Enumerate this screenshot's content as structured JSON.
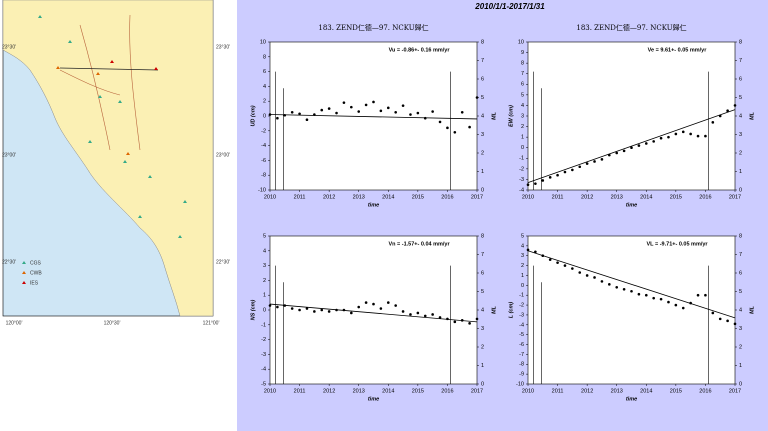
{
  "map": {
    "lon_labels": [
      "120°00'",
      "120°30'",
      "121°00'"
    ],
    "lat_labels": [
      "23°30'",
      "23°00'",
      "22°30'"
    ],
    "legend": [
      "CGS",
      "CWB",
      "IES"
    ]
  },
  "header": {
    "title": "2010/1/1-2017/1/31"
  },
  "chart_data": [
    {
      "type": "scatter",
      "title": "183. ZEND仁德—97. NCKU歸仁",
      "annotation": "Vu = -0.86+- 0.16 mm/yr",
      "x_label": "time",
      "y_label": "UD (cm)",
      "y2_label": "ML",
      "color": "#000000",
      "xlim": [
        2010,
        2017
      ],
      "xticks": [
        2010,
        2011,
        2012,
        2013,
        2014,
        2015,
        2016,
        2017
      ],
      "ylim": [
        -10,
        10
      ],
      "yticks": [
        -10,
        -8,
        -6,
        -4,
        -2,
        0,
        2,
        4,
        6,
        8,
        10
      ],
      "y2lim": [
        0,
        8
      ],
      "y2ticks": [
        0,
        1,
        2,
        3,
        4,
        5,
        6,
        7,
        8
      ],
      "x": [
        2010,
        2010.25,
        2010.5,
        2010.75,
        2011,
        2011.25,
        2011.5,
        2011.75,
        2012,
        2012.25,
        2012.5,
        2012.75,
        2013,
        2013.25,
        2013.5,
        2013.75,
        2014,
        2014.25,
        2014.5,
        2014.75,
        2015,
        2015.25,
        2015.5,
        2015.75,
        2016,
        2016.25,
        2016.5,
        2016.75,
        2017
      ],
      "values": [
        0.2,
        -0.3,
        0.1,
        0.5,
        0.3,
        -0.5,
        0.2,
        0.8,
        1.0,
        0.4,
        1.8,
        1.2,
        0.6,
        1.5,
        1.9,
        0.7,
        1.1,
        0.5,
        1.4,
        0.2,
        0.4,
        -0.3,
        0.6,
        -0.8,
        -1.6,
        -2.2,
        0.5,
        -1.5,
        2.5
      ],
      "trend": {
        "x": [
          2010,
          2017
        ],
        "values": [
          0.2,
          -0.4
        ]
      },
      "events": {
        "x": [
          2010.18,
          2010.45,
          2016.1
        ],
        "values": [
          6.4,
          5.5,
          6.4
        ]
      }
    },
    {
      "type": "scatter",
      "title": "183. ZEND仁德—97. NCKU歸仁",
      "annotation": "Ve = 9.61+- 0.05 mm/yr",
      "x_label": "time",
      "y_label": "EW (cm)",
      "y2_label": "ML",
      "color": "#000000",
      "xlim": [
        2010,
        2017
      ],
      "xticks": [
        2010,
        2011,
        2012,
        2013,
        2014,
        2015,
        2016,
        2017
      ],
      "ylim": [
        -4,
        10
      ],
      "yticks": [
        -4,
        -3,
        -2,
        -1,
        0,
        1,
        2,
        3,
        4,
        5,
        6,
        7,
        8,
        9,
        10
      ],
      "y2lim": [
        0,
        8
      ],
      "y2ticks": [
        0,
        1,
        2,
        3,
        4,
        5,
        6,
        7,
        8
      ],
      "x": [
        2010,
        2010.25,
        2010.5,
        2010.75,
        2011,
        2011.25,
        2011.5,
        2011.75,
        2012,
        2012.25,
        2012.5,
        2012.75,
        2013,
        2013.25,
        2013.5,
        2013.75,
        2014,
        2014.25,
        2014.5,
        2014.75,
        2015,
        2015.25,
        2015.5,
        2015.75,
        2016,
        2016.25,
        2016.5,
        2016.75,
        2017
      ],
      "values": [
        -3.5,
        -3.4,
        -3.1,
        -2.8,
        -2.6,
        -2.3,
        -2.1,
        -1.8,
        -1.5,
        -1.3,
        -1.1,
        -0.7,
        -0.5,
        -0.3,
        0.0,
        0.2,
        0.4,
        0.6,
        0.9,
        1.0,
        1.3,
        1.5,
        1.3,
        1.1,
        1.1,
        2.4,
        3.0,
        3.5,
        4.0
      ],
      "trend": {
        "x": [
          2010,
          2017
        ],
        "values": [
          -3.3,
          3.6
        ]
      },
      "events": {
        "x": [
          2010.18,
          2010.45,
          2016.1
        ],
        "values": [
          6.4,
          5.5,
          6.4
        ]
      }
    },
    {
      "type": "scatter",
      "annotation": "Vn = -1.57+- 0.04 mm/yr",
      "x_label": "time",
      "y_label": "NS (cm)",
      "y2_label": "ML",
      "color": "#000000",
      "xlim": [
        2010,
        2017
      ],
      "xticks": [
        2010,
        2011,
        2012,
        2013,
        2014,
        2015,
        2016,
        2017
      ],
      "ylim": [
        -5,
        5
      ],
      "yticks": [
        -5,
        -4,
        -3,
        -2,
        -1,
        0,
        1,
        2,
        3,
        4,
        5
      ],
      "y2lim": [
        0,
        8
      ],
      "y2ticks": [
        0,
        1,
        2,
        3,
        4,
        5,
        6,
        7,
        8
      ],
      "x": [
        2010,
        2010.25,
        2010.5,
        2010.75,
        2011,
        2011.25,
        2011.5,
        2011.75,
        2012,
        2012.25,
        2012.5,
        2012.75,
        2013,
        2013.25,
        2013.5,
        2013.75,
        2014,
        2014.25,
        2014.5,
        2014.75,
        2015,
        2015.25,
        2015.5,
        2015.75,
        2016,
        2016.25,
        2016.5,
        2016.75,
        2017
      ],
      "values": [
        0.3,
        0.2,
        0.3,
        0.1,
        0.0,
        0.1,
        -0.1,
        0.0,
        -0.1,
        0.0,
        0.0,
        -0.2,
        0.2,
        0.5,
        0.4,
        0.1,
        0.5,
        0.3,
        -0.1,
        -0.3,
        -0.2,
        -0.4,
        -0.3,
        -0.5,
        -0.6,
        -0.8,
        -0.7,
        -0.9,
        -0.6
      ],
      "trend": {
        "x": [
          2010,
          2017
        ],
        "values": [
          0.4,
          -0.8
        ]
      },
      "events": {
        "x": [
          2010.18,
          2010.45,
          2016.1
        ],
        "values": [
          6.4,
          5.5,
          6.4
        ]
      }
    },
    {
      "type": "scatter",
      "annotation": "VL = -9.71+- 0.05 mm/yr",
      "x_label": "time",
      "y_label": "L (cm)",
      "y2_label": "ML",
      "color": "#000000",
      "xlim": [
        2010,
        2017
      ],
      "xticks": [
        2010,
        2011,
        2012,
        2013,
        2014,
        2015,
        2016,
        2017
      ],
      "ylim": [
        -10,
        5
      ],
      "yticks": [
        -10,
        -9,
        -8,
        -7,
        -6,
        -5,
        -4,
        -3,
        -2,
        -1,
        0,
        1,
        2,
        3,
        4,
        5
      ],
      "y2lim": [
        0,
        8
      ],
      "y2ticks": [
        0,
        1,
        2,
        3,
        4,
        5,
        6,
        7,
        8
      ],
      "x": [
        2010,
        2010.25,
        2010.5,
        2010.75,
        2011,
        2011.25,
        2011.5,
        2011.75,
        2012,
        2012.25,
        2012.5,
        2012.75,
        2013,
        2013.25,
        2013.5,
        2013.75,
        2014,
        2014.25,
        2014.5,
        2014.75,
        2015,
        2015.25,
        2015.5,
        2015.75,
        2016,
        2016.25,
        2016.5,
        2016.75,
        2017
      ],
      "values": [
        3.6,
        3.4,
        3.0,
        2.6,
        2.3,
        2.0,
        1.7,
        1.3,
        1.0,
        0.8,
        0.4,
        0.1,
        -0.2,
        -0.4,
        -0.6,
        -0.9,
        -1.0,
        -1.3,
        -1.4,
        -1.7,
        -2.0,
        -2.3,
        -1.8,
        -1.0,
        -1.0,
        -2.8,
        -3.4,
        -3.6,
        -3.9
      ],
      "trend": {
        "x": [
          2010,
          2017
        ],
        "values": [
          3.5,
          -3.3
        ]
      },
      "events": {
        "x": [
          2010.18,
          2010.45,
          2016.1
        ],
        "values": [
          6.4,
          5.5,
          6.4
        ]
      }
    }
  ]
}
